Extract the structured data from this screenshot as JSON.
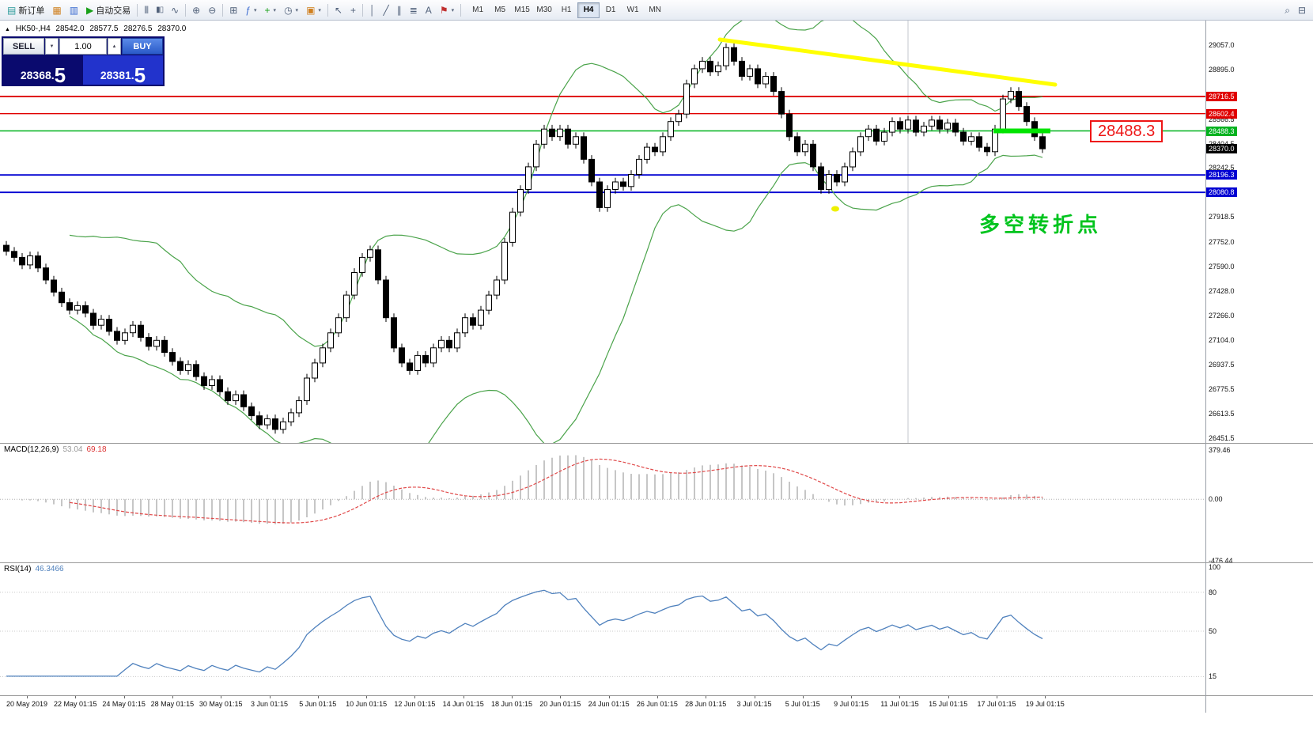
{
  "toolbar": {
    "new_order_label": "新订单",
    "auto_trading_label": "自动交易",
    "timeframes": [
      "M1",
      "M5",
      "M15",
      "M30",
      "H1",
      "H4",
      "D1",
      "W1",
      "MN"
    ],
    "active_timeframe": "H4"
  },
  "icons": {
    "new_order": "▤",
    "market_watch": "▦",
    "terminal": "▥",
    "auto_trading_play": "▶",
    "bar_chart": "|||",
    "candlestick_chart": "▮▯",
    "line_chart": "∿",
    "zoom_in": "⊕",
    "zoom_out": "⊖",
    "tile_windows": "⊞",
    "indicators": "ƒ",
    "add_indicator": "+",
    "period": "◷",
    "template": "▣",
    "cursor": "↖",
    "crosshair": "+",
    "vertical_line": "│",
    "trendline": "╱",
    "channel": "∥",
    "fibonacci": "≣",
    "text": "A",
    "label_flag": "⚑",
    "dropdown_caret": "▾",
    "search": "⌕",
    "print": "⊟",
    "expander": "▲"
  },
  "header": {
    "symbol_period": "HK50-,H4",
    "open": "28542.0",
    "high": "28577.5",
    "low": "28276.5",
    "close": "28370.0"
  },
  "order_panel": {
    "sell_label": "SELL",
    "buy_label": "BUY",
    "volume": "1.00",
    "spin_down": "▼",
    "spin_up": "▲",
    "sell_price_main": "28368.",
    "sell_price_pip": "5",
    "buy_price_main": "28381.",
    "buy_price_pip": "5"
  },
  "chart": {
    "annotation_text": "多空转折点",
    "price_callout": "28488.3"
  },
  "chart_data": {
    "type": "candlestick",
    "symbol": "HK50-",
    "timeframe": "H4",
    "ohlc_display": {
      "open": 28542.0,
      "high": 28577.5,
      "low": 28276.5,
      "close": 28370.0
    },
    "y_range": [
      26451.5,
      29057.0
    ],
    "y_axis_ticks": [
      "29057.0",
      "28895.0",
      "28566.5",
      "28404.5",
      "28242.5",
      "27918.5",
      "27752.0",
      "27590.0",
      "27428.0",
      "27266.0",
      "27104.0",
      "26937.5",
      "26775.5",
      "26613.5",
      "26451.5"
    ],
    "price_lines": [
      {
        "price": 28716.5,
        "label": "28716.5",
        "color": "#e00000",
        "width": 2
      },
      {
        "price": 28602.4,
        "label": "28602.4",
        "color": "#e00000",
        "width": 1.4
      },
      {
        "price": 28488.3,
        "label": "28488.3",
        "color": "#00b21e",
        "width": 1.6
      },
      {
        "price": 28196.3,
        "label": "28196.3",
        "color": "#0000d2",
        "width": 1.8
      },
      {
        "price": 28080.8,
        "label": "28080.8",
        "color": "#0000d2",
        "width": 1.8
      }
    ],
    "current_price": {
      "label": "28370.0",
      "value": 28370.0,
      "color": "#000000"
    },
    "closes": [
      27690,
      27650,
      27600,
      27660,
      27580,
      27500,
      27420,
      27350,
      27300,
      27330,
      27280,
      27200,
      27240,
      27160,
      27100,
      27150,
      27200,
      27120,
      27060,
      27100,
      27020,
      26960,
      26900,
      26940,
      26860,
      26800,
      26840,
      26760,
      26700,
      26740,
      26660,
      26600,
      26540,
      26580,
      26510,
      26560,
      26620,
      26700,
      26850,
      26950,
      27050,
      27150,
      27250,
      27400,
      27550,
      27650,
      27700,
      27500,
      27250,
      27050,
      26950,
      26900,
      27000,
      26950,
      27050,
      27100,
      27050,
      27150,
      27250,
      27200,
      27300,
      27400,
      27500,
      27750,
      27950,
      28100,
      28250,
      28400,
      28500,
      28450,
      28500,
      28400,
      28450,
      28300,
      28150,
      27980,
      28100,
      28150,
      28120,
      28200,
      28300,
      28380,
      28350,
      28450,
      28550,
      28600,
      28800,
      28900,
      28950,
      28880,
      28920,
      29040,
      28950,
      28850,
      28900,
      28800,
      28850,
      28750,
      28600,
      28450,
      28350,
      28400,
      28250,
      28100,
      28200,
      28150,
      28250,
      28350,
      28450,
      28500,
      28420,
      28480,
      28550,
      28500,
      28560,
      28480,
      28520,
      28560,
      28500,
      28540,
      28480,
      28420,
      28450,
      28380,
      28350,
      28500,
      28700,
      28750,
      28650,
      28550,
      28450,
      28370
    ],
    "x_labels": [
      "20 May 2019",
      "22 May 01:15",
      "24 May 01:15",
      "28 May 01:15",
      "30 May 01:15",
      "3 Jun 01:15",
      "5 Jun 01:15",
      "10 Jun 01:15",
      "12 Jun 01:15",
      "14 Jun 01:15",
      "18 Jun 01:15",
      "20 Jun 01:15",
      "24 Jun 01:15",
      "26 Jun 01:15",
      "28 Jun 01:15",
      "3 Jul 01:15",
      "5 Jul 01:15",
      "9 Jul 01:15",
      "11 Jul 01:15",
      "15 Jul 01:15",
      "17 Jul 01:15",
      "19 Jul 01:15"
    ]
  },
  "macd": {
    "name": "MACD(12,26,9)",
    "main_value": "53.04",
    "signal_value": "69.18",
    "axis_labels": [
      "379.46",
      "0.00",
      "-476.44"
    ],
    "scale_max": 379.46,
    "scale_min": -476.44
  },
  "rsi": {
    "name": "RSI(14)",
    "value": "46.3466",
    "axis_labels": [
      "100",
      "80",
      "50",
      "15"
    ],
    "levels": [
      80,
      50,
      15
    ]
  }
}
